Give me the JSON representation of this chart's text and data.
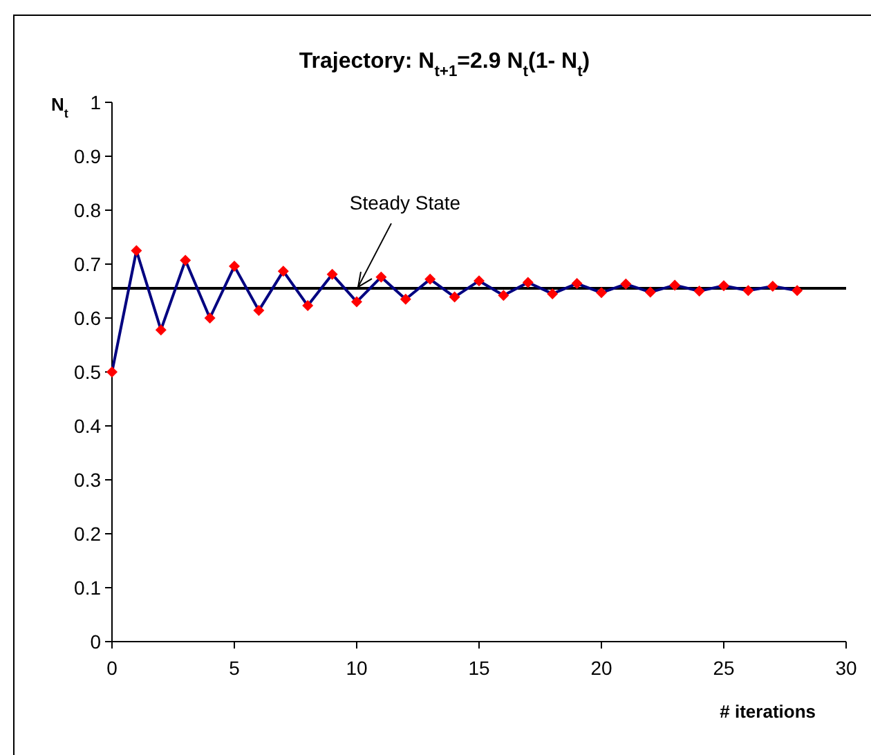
{
  "chart_data": {
    "type": "line",
    "title": "Trajectory: N$_{t+1}$=2.9 N$_{t}$(1- N$_{t}$)",
    "xlabel": "# iterations",
    "ylabel": "N$_{t}$",
    "x": [
      0,
      1,
      2,
      3,
      4,
      5,
      6,
      7,
      8,
      9,
      10,
      11,
      12,
      13,
      14,
      15,
      16,
      17,
      18,
      19,
      20,
      21,
      22,
      23,
      24,
      25,
      26,
      27,
      28
    ],
    "series": [
      {
        "color": "#000080",
        "marker": "none",
        "values": [
          0.5,
          0.725,
          0.578,
          0.707,
          0.6,
          0.696,
          0.614,
          0.687,
          0.623,
          0.681,
          0.63,
          0.676,
          0.635,
          0.672,
          0.639,
          0.669,
          0.642,
          0.666,
          0.645,
          0.664,
          0.647,
          0.663,
          0.648,
          0.661,
          0.65,
          0.66,
          0.651,
          0.659,
          0.651
        ]
      },
      {
        "type": "scatter",
        "color": "#ff0000",
        "marker": "diamond",
        "values": [
          0.5,
          0.725,
          0.578,
          0.707,
          0.6,
          0.696,
          0.614,
          0.687,
          0.623,
          0.681,
          0.63,
          0.676,
          0.635,
          0.672,
          0.639,
          0.669,
          0.642,
          0.666,
          0.645,
          0.664,
          0.647,
          0.663,
          0.648,
          0.661,
          0.65,
          0.66,
          0.651,
          0.659,
          0.651
        ]
      }
    ],
    "xlim": [
      0,
      30
    ],
    "xticks": [
      0,
      5,
      10,
      15,
      20,
      25,
      30
    ],
    "ylim": [
      0,
      1
    ],
    "yticks": [
      0,
      0.1,
      0.2,
      0.3,
      0.4,
      0.5,
      0.6,
      0.7,
      0.8,
      0.9,
      1
    ],
    "ref_lines": [
      {
        "axis": "y",
        "value": 0.655,
        "color": "#000000"
      }
    ],
    "annotations": [
      {
        "text": "Steady State",
        "x": 10,
        "y": 0.655
      }
    ],
    "grid": false
  }
}
